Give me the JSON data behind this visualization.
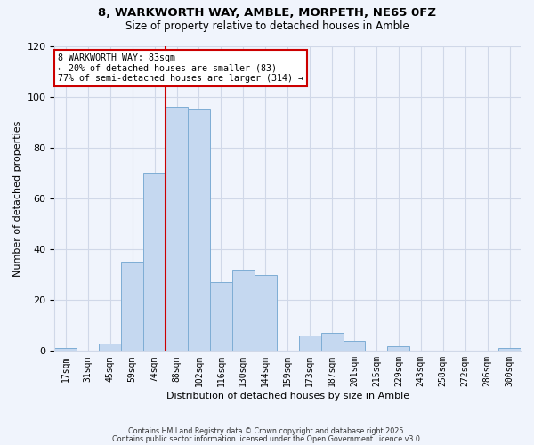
{
  "title": "8, WARKWORTH WAY, AMBLE, MORPETH, NE65 0FZ",
  "subtitle": "Size of property relative to detached houses in Amble",
  "xlabel": "Distribution of detached houses by size in Amble",
  "ylabel": "Number of detached properties",
  "bar_color": "#c5d8f0",
  "bar_edge_color": "#7eadd4",
  "grid_color": "#d0d8e8",
  "bg_color": "#f0f4fc",
  "categories": [
    "17sqm",
    "31sqm",
    "45sqm",
    "59sqm",
    "74sqm",
    "88sqm",
    "102sqm",
    "116sqm",
    "130sqm",
    "144sqm",
    "159sqm",
    "173sqm",
    "187sqm",
    "201sqm",
    "215sqm",
    "229sqm",
    "243sqm",
    "258sqm",
    "272sqm",
    "286sqm",
    "300sqm"
  ],
  "values": [
    1,
    0,
    3,
    35,
    70,
    96,
    95,
    27,
    32,
    30,
    0,
    6,
    7,
    4,
    0,
    2,
    0,
    0,
    0,
    0,
    1
  ],
  "vline_x_index": 4.5,
  "vline_color": "#cc0000",
  "annotation_line1": "8 WARKWORTH WAY: 83sqm",
  "annotation_line2": "← 20% of detached houses are smaller (83)",
  "annotation_line3": "77% of semi-detached houses are larger (314) →",
  "annotation_box_color": "#ffffff",
  "annotation_box_edge": "#cc0000",
  "ylim": [
    0,
    120
  ],
  "yticks": [
    0,
    20,
    40,
    60,
    80,
    100,
    120
  ],
  "footer1": "Contains HM Land Registry data © Crown copyright and database right 2025.",
  "footer2": "Contains public sector information licensed under the Open Government Licence v3.0."
}
